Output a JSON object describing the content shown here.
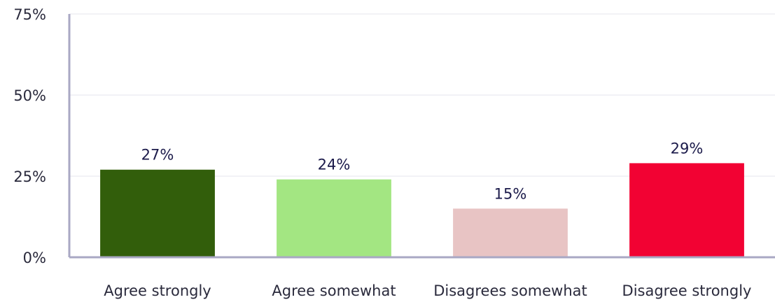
{
  "chart_data": {
    "type": "bar",
    "categories": [
      "Agree strongly",
      "Agree somewhat",
      "Disagrees somewhat",
      "Disagree strongly"
    ],
    "values": [
      27,
      24,
      15,
      29
    ],
    "value_labels": [
      "27%",
      "24%",
      "15%",
      "29%"
    ],
    "colors": [
      "#325e0b",
      "#a3e682",
      "#e8c4c4",
      "#f20233"
    ],
    "ylim": [
      0,
      75
    ],
    "yticks": [
      0,
      25,
      50,
      75
    ],
    "ytick_labels": [
      "0%",
      "25%",
      "50%",
      "75%"
    ],
    "grid": true,
    "legend": "none",
    "title": "",
    "xlabel": "",
    "ylabel": ""
  }
}
